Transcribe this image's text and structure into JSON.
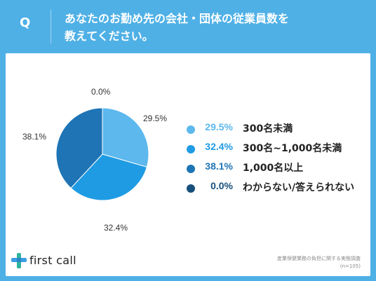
{
  "header": {
    "q_mark": "Q",
    "question_line1": "あなたのお勤め先の会社・団体の従業員数を",
    "question_line2": "教えてください。"
  },
  "chart_data": {
    "type": "pie",
    "categories": [
      "300名未満",
      "300名~1,000名未満",
      "1,000名以上",
      "わからない/答えられない"
    ],
    "values": [
      29.5,
      32.4,
      38.1,
      0.0
    ],
    "value_labels": [
      "29.5%",
      "32.4%",
      "38.1%",
      "0.0%"
    ],
    "colors": [
      "#5cb8ed",
      "#1f9be3",
      "#1e74b5",
      "#174f7c"
    ],
    "legend_placement": "right"
  },
  "legend": [
    {
      "pct": "29.5%",
      "label": "300名未満"
    },
    {
      "pct": "32.4%",
      "label": "300名~1,000名未満"
    },
    {
      "pct": "38.1%",
      "label": "1,000名以上"
    },
    {
      "pct": "0.0%",
      "label": "わからない/答えられない"
    }
  ],
  "logo": {
    "text": "first call",
    "icon": "plus-logo-icon"
  },
  "source": {
    "line1": "産業保健業務の負担に関する実態調査",
    "line2": "(n=105)"
  }
}
